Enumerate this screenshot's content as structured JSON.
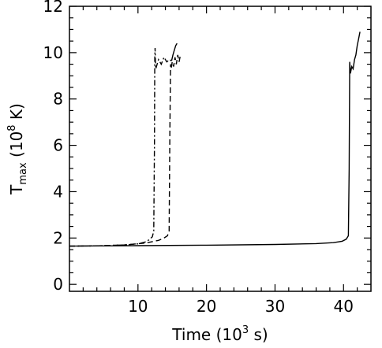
{
  "chart_data": {
    "type": "line",
    "xlabel": {
      "base": "Time (10",
      "sup": "3",
      "tail": " s)"
    },
    "ylabel": {
      "base": "T",
      "sub": "max",
      "mid": " (10",
      "sup": "8",
      "tail": " K)"
    },
    "xlim": [
      0,
      44
    ],
    "ylim": [
      -0.3,
      12
    ],
    "xticks": [
      10,
      20,
      30,
      40
    ],
    "xtick_labels": [
      "10",
      "20",
      "30",
      "40"
    ],
    "yticks": [
      0,
      2,
      4,
      6,
      8,
      10,
      12
    ],
    "ytick_labels": [
      "0",
      "2",
      "4",
      "6",
      "8",
      "10",
      "12"
    ],
    "grid": false,
    "legend": null,
    "series": [
      {
        "style": "dash-dot",
        "x": [
          0,
          4,
          8,
          10,
          11,
          11.6,
          12.1,
          12.3,
          12.4,
          12.45,
          12.5,
          12.55,
          12.6,
          12.8,
          13.0,
          13.4,
          13.8,
          14.2,
          14.6,
          14.9
        ],
        "y": [
          1.65,
          1.66,
          1.7,
          1.75,
          1.82,
          1.92,
          2.05,
          2.3,
          6.0,
          9.8,
          10.2,
          9.5,
          9.3,
          9.5,
          9.7,
          9.5,
          9.8,
          9.6,
          9.7,
          9.65
        ]
      },
      {
        "style": "dashed",
        "x": [
          0,
          4,
          8,
          11,
          13,
          13.8,
          14.3,
          14.55,
          14.65,
          14.75,
          14.85,
          15.0,
          15.2,
          15.4,
          15.6,
          15.8,
          16.0,
          16.2
        ],
        "y": [
          1.65,
          1.66,
          1.7,
          1.78,
          1.9,
          2.0,
          2.1,
          2.3,
          6.5,
          9.5,
          9.3,
          9.6,
          9.4,
          9.8,
          9.5,
          9.9,
          9.6,
          9.9
        ]
      },
      {
        "style": "solid",
        "x": [
          0,
          5,
          10,
          20,
          30,
          36,
          38.5,
          39.8,
          40.4,
          40.7,
          40.82,
          40.9,
          41.0,
          41.2,
          41.4,
          41.6,
          41.8,
          42.0,
          42.2,
          42.4
        ],
        "y": [
          1.65,
          1.66,
          1.67,
          1.69,
          1.72,
          1.76,
          1.8,
          1.86,
          1.95,
          2.1,
          5.0,
          9.6,
          9.1,
          9.4,
          9.3,
          9.7,
          9.9,
          10.3,
          10.6,
          10.9
        ]
      },
      {
        "style": "solid",
        "x": [
          14.9,
          15.1,
          15.3,
          15.5,
          15.7
        ],
        "y": [
          9.65,
          9.9,
          10.1,
          10.3,
          10.4
        ]
      }
    ]
  }
}
